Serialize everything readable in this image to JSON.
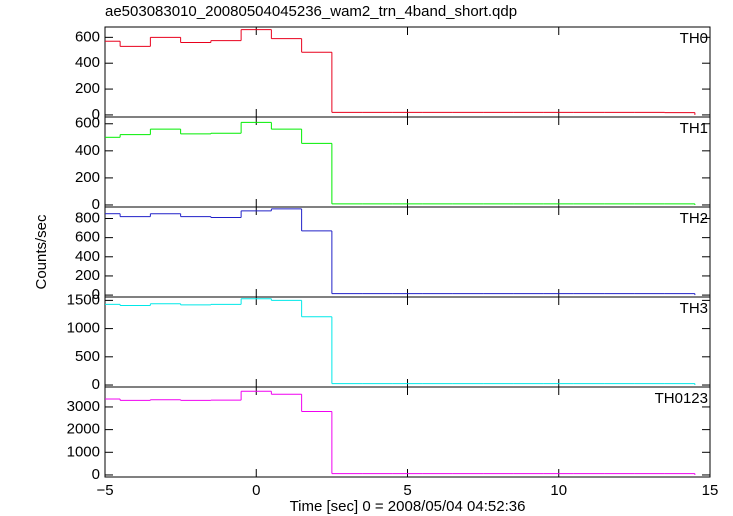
{
  "chart_data": [
    {
      "type": "histogram",
      "title": "ae503083010_20080504045236_wam2_trn_4band_short.qdp",
      "label": "TH0",
      "color": "#e8001c",
      "bins": [
        -5.5,
        -4.5,
        -3.5,
        -2.5,
        -1.5,
        -0.5,
        0.5,
        1.5,
        2.5,
        3.5,
        4.5,
        5.5,
        6.5,
        7.5,
        8.5,
        9.5,
        10.5,
        11.5,
        12.5,
        13.5,
        14.5
      ],
      "values": [
        570,
        530,
        600,
        560,
        575,
        660,
        590,
        485,
        20,
        20,
        20,
        20,
        20,
        20,
        20,
        20,
        20,
        20,
        20,
        18
      ],
      "xlim": [
        -5,
        15
      ],
      "xticks": [
        -5,
        0,
        5,
        10,
        15
      ],
      "ylim": [
        -16,
        680
      ],
      "yticks": [
        0,
        200,
        400,
        600
      ]
    },
    {
      "type": "histogram",
      "label": "TH1",
      "color": "#00ee00",
      "bins": [
        -5.5,
        -4.5,
        -3.5,
        -2.5,
        -1.5,
        -0.5,
        0.5,
        1.5,
        2.5,
        3.5,
        4.5,
        5.5,
        6.5,
        7.5,
        8.5,
        9.5,
        10.5,
        11.5,
        12.5,
        13.5,
        14.5
      ],
      "values": [
        500,
        520,
        560,
        525,
        530,
        610,
        560,
        455,
        8,
        8,
        8,
        8,
        8,
        8,
        8,
        8,
        8,
        8,
        8,
        8
      ],
      "xlim": [
        -5,
        15
      ],
      "xticks": [
        -5,
        0,
        5,
        10,
        15
      ],
      "ylim": [
        -15,
        650
      ],
      "yticks": [
        0,
        200,
        400,
        600
      ]
    },
    {
      "type": "histogram",
      "label": "TH2",
      "ylabel": "Counts/sec",
      "color": "#2020c8",
      "bins": [
        -5.5,
        -4.5,
        -3.5,
        -2.5,
        -1.5,
        -0.5,
        0.5,
        1.5,
        2.5,
        3.5,
        4.5,
        5.5,
        6.5,
        7.5,
        8.5,
        9.5,
        10.5,
        11.5,
        12.5,
        13.5,
        14.5
      ],
      "values": [
        850,
        820,
        850,
        820,
        810,
        880,
        900,
        670,
        15,
        15,
        15,
        15,
        15,
        15,
        15,
        15,
        15,
        15,
        15,
        15
      ],
      "xlim": [
        -5,
        15
      ],
      "xticks": [
        -5,
        0,
        5,
        10,
        15
      ],
      "ylim": [
        -20,
        920
      ],
      "yticks": [
        0,
        200,
        400,
        600,
        800
      ]
    },
    {
      "type": "histogram",
      "label": "TH3",
      "color": "#00e8e8",
      "bins": [
        -5.5,
        -4.5,
        -3.5,
        -2.5,
        -1.5,
        -0.5,
        0.5,
        1.5,
        2.5,
        3.5,
        4.5,
        5.5,
        6.5,
        7.5,
        8.5,
        9.5,
        10.5,
        11.5,
        12.5,
        13.5,
        14.5
      ],
      "values": [
        1430,
        1410,
        1440,
        1420,
        1430,
        1530,
        1500,
        1210,
        25,
        25,
        25,
        25,
        25,
        25,
        25,
        25,
        25,
        25,
        25,
        25
      ],
      "xlim": [
        -5,
        15
      ],
      "xticks": [
        -5,
        0,
        5,
        10,
        15
      ],
      "ylim": [
        -35,
        1560
      ],
      "yticks": [
        0,
        500,
        1000,
        1500
      ]
    },
    {
      "type": "histogram",
      "label": "TH0123",
      "xlabel": "Time [sec] 0 = 2008/05/04 04:52:36",
      "color": "#f000f0",
      "bins": [
        -5.5,
        -4.5,
        -3.5,
        -2.5,
        -1.5,
        -0.5,
        0.5,
        1.5,
        2.5,
        3.5,
        4.5,
        5.5,
        6.5,
        7.5,
        8.5,
        9.5,
        10.5,
        11.5,
        12.5,
        13.5,
        14.5
      ],
      "values": [
        3350,
        3290,
        3320,
        3290,
        3300,
        3690,
        3560,
        2800,
        60,
        60,
        60,
        60,
        60,
        60,
        60,
        60,
        60,
        60,
        60,
        60
      ],
      "xlim": [
        -5,
        15
      ],
      "xticks": [
        {
          "value": -5,
          "label": "−5"
        },
        0,
        5,
        10,
        15
      ],
      "ylim": [
        -90,
        3880
      ],
      "yticks": [
        0,
        1000,
        2000,
        3000
      ]
    }
  ]
}
